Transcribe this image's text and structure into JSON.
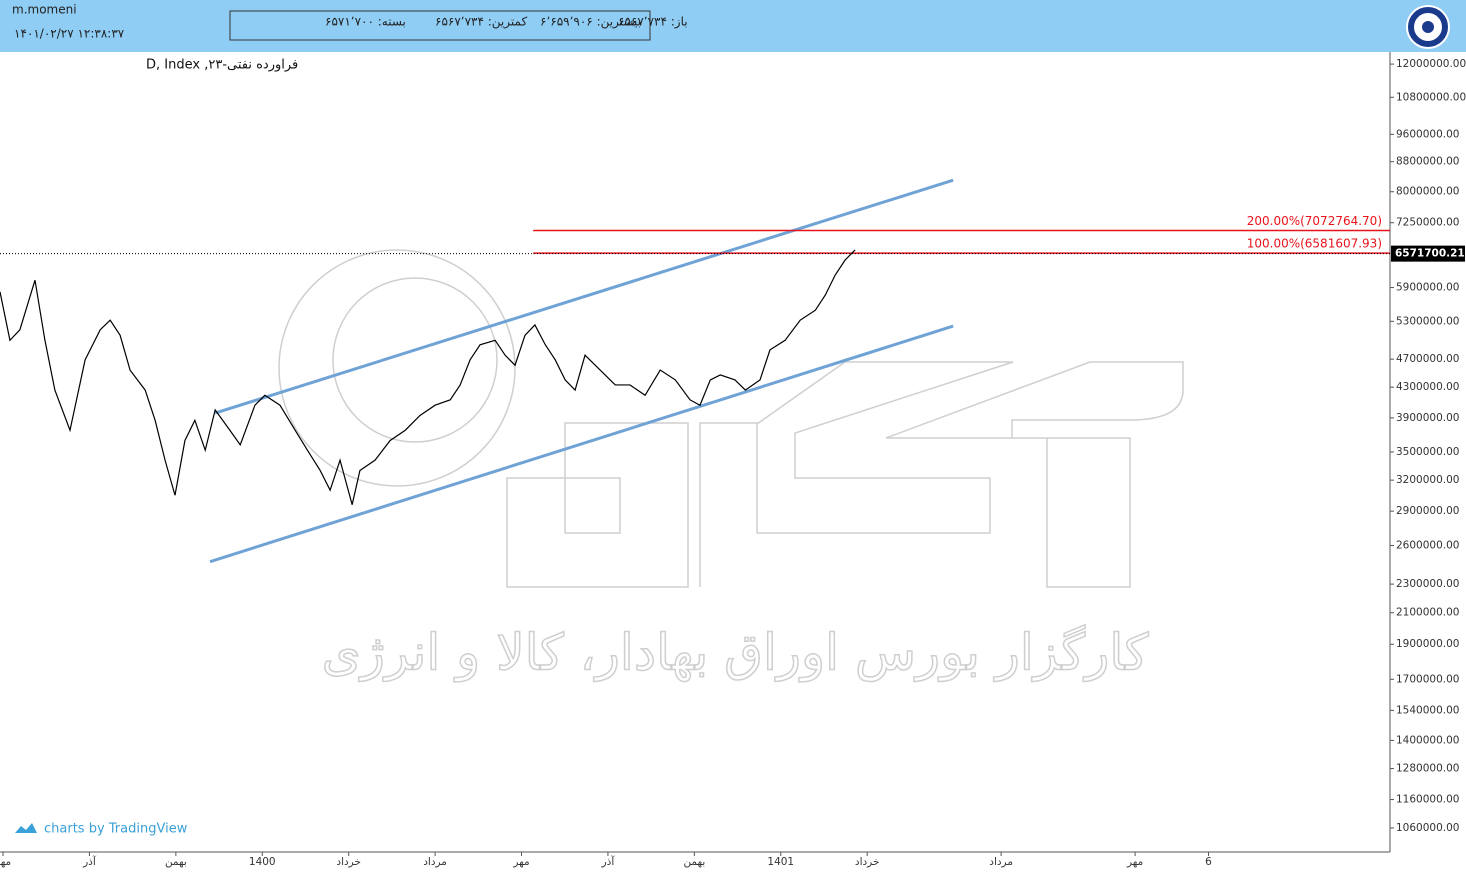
{
  "header": {
    "user": "m.momeni",
    "datetime": "۱۴۰۱/۰۲/۲۷ ۱۲:۳۸:۳۷",
    "ohlc": [
      "باز: ۶۵۶۷٬۷۳۴",
      "بیشترین: ۶٬۶۵۹٬۹۰۶",
      "کمترین: ۶۵۶۷٬۷۳۴",
      "بسته: ۶۵۷۱٬۷۰۰"
    ]
  },
  "watermark": "کارگزار بورس اوراق بهادار، کالا و انرژی",
  "credit": "charts by TradingView",
  "chart_data": {
    "type": "line",
    "title": "فراورده نفتی-۲۳, D, Index",
    "log_scale": true,
    "color": "#000000",
    "x": [
      -0.07,
      0.16,
      0.39,
      0.74,
      0.97,
      1.2,
      1.55,
      1.9,
      2.25,
      2.48,
      2.71,
      2.94,
      3.29,
      3.52,
      3.75,
      3.98,
      4.21,
      4.44,
      4.68,
      4.91,
      5.25,
      5.49,
      5.83,
      6.06,
      6.41,
      6.76,
      7.11,
      7.34,
      7.57,
      7.8,
      8.08,
      8.26,
      8.61,
      8.96,
      9.31,
      9.65,
      10.0,
      10.35,
      10.58,
      10.81,
      11.04,
      11.39,
      11.62,
      11.85,
      12.08,
      12.31,
      12.55,
      12.78,
      13.01,
      13.24,
      13.47,
      13.82,
      14.17,
      14.51,
      14.86,
      15.21,
      15.56,
      15.9,
      16.13,
      16.37,
      16.6,
      16.94,
      17.18,
      17.52,
      17.75,
      18.1,
      18.45,
      18.8,
      19.03,
      19.26,
      19.49,
      19.72
    ],
    "values": [
      5820000,
      4990000,
      5160000,
      6040000,
      4990000,
      4260000,
      3750000,
      4690000,
      5160000,
      5320000,
      5070000,
      4540000,
      4260000,
      3870000,
      3410000,
      3050000,
      3630000,
      3870000,
      3520000,
      4000000,
      3750000,
      3580000,
      4060000,
      4190000,
      4060000,
      3750000,
      3470000,
      3300000,
      3100000,
      3410000,
      2960000,
      3300000,
      3410000,
      3630000,
      3750000,
      3930000,
      4060000,
      4130000,
      4330000,
      4690000,
      4920000,
      4990000,
      4760000,
      4610000,
      5070000,
      5240000,
      4920000,
      4690000,
      4400000,
      4260000,
      4760000,
      4540000,
      4330000,
      4330000,
      4190000,
      4540000,
      4400000,
      4130000,
      4060000,
      4400000,
      4470000,
      4400000,
      4260000,
      4400000,
      4840000,
      4990000,
      5320000,
      5490000,
      5760000,
      6140000,
      6440000,
      6650000
    ],
    "xlim": [
      -0.07,
      32.1
    ],
    "ylim": [
      982000,
      12470000
    ],
    "xticks": [
      {
        "value": 0,
        "label": "مهر"
      },
      {
        "value": 2,
        "label": "آذر"
      },
      {
        "value": 4,
        "label": "بهمن"
      },
      {
        "value": 6,
        "label": "1400"
      },
      {
        "value": 8,
        "label": "خرداد"
      },
      {
        "value": 10,
        "label": "مرداد"
      },
      {
        "value": 12,
        "label": "مهر"
      },
      {
        "value": 14,
        "label": "آذر"
      },
      {
        "value": 16,
        "label": "بهمن"
      },
      {
        "value": 18,
        "label": "1401"
      },
      {
        "value": 20,
        "label": "خرداد"
      },
      {
        "value": 23.1,
        "label": "مرداد"
      },
      {
        "value": 26.2,
        "label": "مهر"
      },
      {
        "value": 27.9,
        "label": "6"
      }
    ],
    "yticks": [
      {
        "value": 12000000,
        "label": "12000000.00"
      },
      {
        "value": 10800000,
        "label": "10800000.00"
      },
      {
        "value": 9600000,
        "label": "9600000.00"
      },
      {
        "value": 8800000,
        "label": "8800000.00"
      },
      {
        "value": 8000000,
        "label": "8000000.00"
      },
      {
        "value": 7250000,
        "label": "7250000.00"
      },
      {
        "value": 5900000,
        "label": "5900000.00"
      },
      {
        "value": 5300000,
        "label": "5300000.00"
      },
      {
        "value": 4700000,
        "label": "4700000.00"
      },
      {
        "value": 4300000,
        "label": "4300000.00"
      },
      {
        "value": 3900000,
        "label": "3900000.00"
      },
      {
        "value": 3500000,
        "label": "3500000.00"
      },
      {
        "value": 3200000,
        "label": "3200000.00"
      },
      {
        "value": 2900000,
        "label": "2900000.00"
      },
      {
        "value": 2600000,
        "label": "2600000.00"
      },
      {
        "value": 2300000,
        "label": "2300000.00"
      },
      {
        "value": 2100000,
        "label": "2100000.00"
      },
      {
        "value": 1900000,
        "label": "1900000.00"
      },
      {
        "value": 1700000,
        "label": "1700000.00"
      },
      {
        "value": 1540000,
        "label": "1540000.00"
      },
      {
        "value": 1400000,
        "label": "1400000.00"
      },
      {
        "value": 1280000,
        "label": "1280000.00"
      },
      {
        "value": 1160000,
        "label": "1160000.00"
      },
      {
        "value": 1060000,
        "label": "1060000.00"
      }
    ],
    "last_price": {
      "value": 6571700.21,
      "label": "6571700.21",
      "color": "#000000"
    },
    "channel_lines": {
      "color": "#6fa3d6",
      "lines": [
        {
          "x": [
            4.91,
            21.99
          ],
          "y": [
            3960000,
            8300000
          ]
        },
        {
          "x": [
            4.79,
            21.99
          ],
          "y": [
            2470000,
            5220000
          ]
        }
      ]
    },
    "fib_levels": {
      "color": "#e8141c",
      "start": 12.27,
      "levels": [
        {
          "value": 7072764.7,
          "label": "200.00%(7072764.70)"
        },
        {
          "value": 6581607.93,
          "label": "100.00%(6581607.93)"
        }
      ]
    }
  }
}
